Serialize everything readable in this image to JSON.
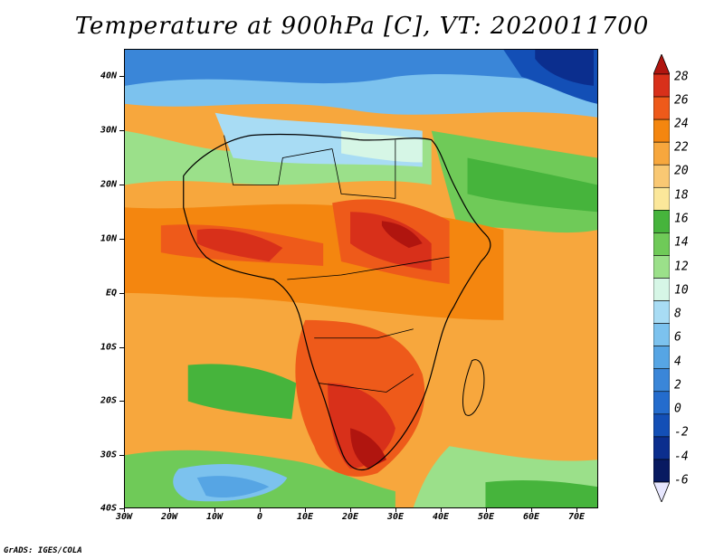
{
  "title": "Temperature at 900hPa [C], VT: 2020011700",
  "credit": "GrADS: IGES/COLA",
  "axes": {
    "lat_labels": [
      "40N",
      "30N",
      "20N",
      "10N",
      "EQ",
      "10S",
      "20S",
      "30S",
      "40S"
    ],
    "lon_labels": [
      "30W",
      "20W",
      "10W",
      "0",
      "10E",
      "20E",
      "30E",
      "40E",
      "50E",
      "60E",
      "70E"
    ]
  },
  "colorbar": {
    "labels": [
      "28",
      "26",
      "24",
      "22",
      "20",
      "18",
      "16",
      "14",
      "12",
      "10",
      "8",
      "6",
      "4",
      "2",
      "0",
      "-2",
      "-4",
      "-6"
    ],
    "colors": [
      "#b0150f",
      "#d8301a",
      "#ee5a1a",
      "#f4860f",
      "#f7a73d",
      "#f9c873",
      "#fbe79a",
      "#46b43c",
      "#6fca58",
      "#9be08a",
      "#d6f6e6",
      "#a8dcf4",
      "#7cc2ee",
      "#56a5e4",
      "#3a86d8",
      "#246ccd",
      "#134fb6",
      "#0b2e8e",
      "#081a61",
      "#e7e7ff"
    ]
  },
  "map_colors": {
    "ocean_warm": "#f5c06a",
    "hot_core": "#d8301a",
    "very_hot": "#b0150f",
    "warm": "#f4860f",
    "cool_green": "#46b43c",
    "light_green": "#9be08a",
    "cold_blue": "#56a5e4",
    "coldest": "#0b2e8e"
  }
}
